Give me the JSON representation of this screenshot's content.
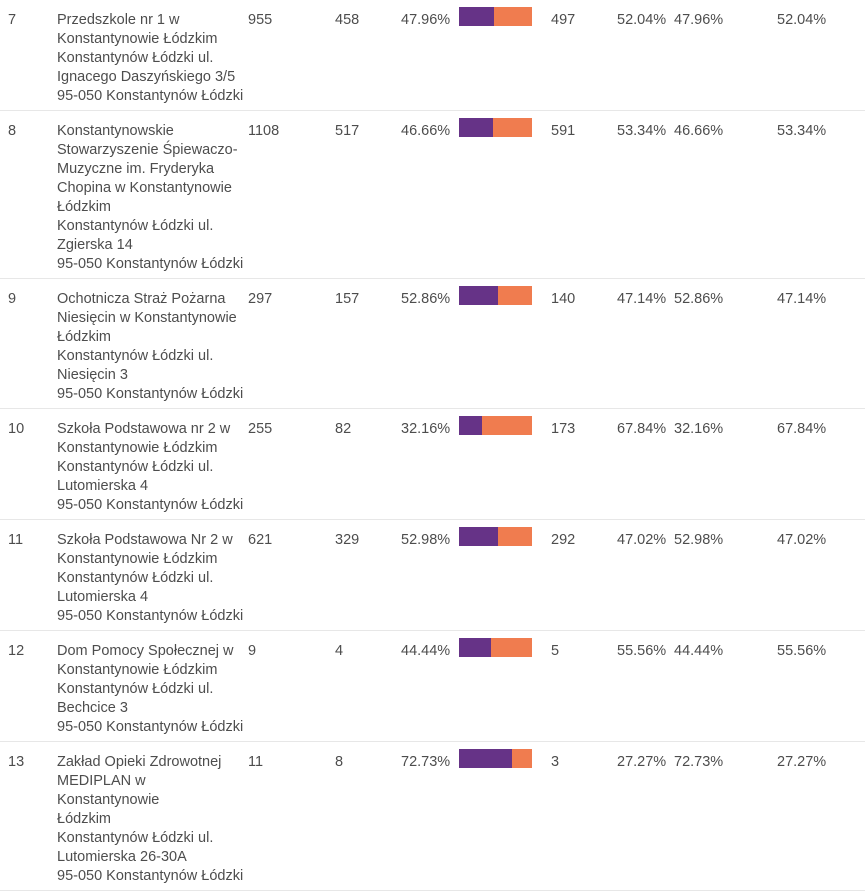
{
  "colors": {
    "candidate_a_bar": "#663387",
    "candidate_b_bar": "#f07c4f",
    "row_border": "#e7e7e7",
    "text": "#4d4d4d"
  },
  "table": {
    "rows": [
      {
        "num": "7",
        "name": "Przedszkole nr 1 w\nKonstantynowie Łódzkim",
        "address": "Konstantynów Łódzki ul.\nIgnacego Daszyńskiego 3/5",
        "zip": "95-050 Konstantynów Łódzki",
        "total": "955",
        "votes_a": "458",
        "pct_a": "47.96%",
        "votes_b": "497",
        "pct_b": "52.04%",
        "pct_a_repeat": "47.96%",
        "pct_b_repeat": "52.04%"
      },
      {
        "num": "8",
        "name": "Konstantynowskie\nStowarzyszenie Śpiewaczo-\nMuzyczne im. Fryderyka\nChopina w Konstantynowie\nŁódzkim",
        "address": "Konstantynów Łódzki ul.\nZgierska 14",
        "zip": "95-050 Konstantynów Łódzki",
        "total": "1108",
        "votes_a": "517",
        "pct_a": "46.66%",
        "votes_b": "591",
        "pct_b": "53.34%",
        "pct_a_repeat": "46.66%",
        "pct_b_repeat": "53.34%"
      },
      {
        "num": "9",
        "name": "Ochotnicza Straż Pożarna\nNiesięcin w Konstantynowie\nŁódzkim",
        "address": "Konstantynów Łódzki ul.\nNiesięcin 3",
        "zip": "95-050 Konstantynów Łódzki",
        "total": "297",
        "votes_a": "157",
        "pct_a": "52.86%",
        "votes_b": "140",
        "pct_b": "47.14%",
        "pct_a_repeat": "52.86%",
        "pct_b_repeat": "47.14%"
      },
      {
        "num": "10",
        "name": "Szkoła Podstawowa nr 2 w\nKonstantynowie Łódzkim",
        "address": "Konstantynów Łódzki ul.\nLutomierska 4",
        "zip": "95-050 Konstantynów Łódzki",
        "total": "255",
        "votes_a": "82",
        "pct_a": "32.16%",
        "votes_b": "173",
        "pct_b": "67.84%",
        "pct_a_repeat": "32.16%",
        "pct_b_repeat": "67.84%"
      },
      {
        "num": "11",
        "name": "Szkoła Podstawowa Nr 2 w\nKonstantynowie Łódzkim",
        "address": "Konstantynów Łódzki ul.\nLutomierska 4",
        "zip": "95-050 Konstantynów Łódzki",
        "total": "621",
        "votes_a": "329",
        "pct_a": "52.98%",
        "votes_b": "292",
        "pct_b": "47.02%",
        "pct_a_repeat": "52.98%",
        "pct_b_repeat": "47.02%"
      },
      {
        "num": "12",
        "name": "Dom Pomocy Społecznej w\nKonstantynowie Łódzkim",
        "address": "Konstantynów Łódzki ul.\nBechcice 3",
        "zip": "95-050 Konstantynów Łódzki",
        "total": "9",
        "votes_a": "4",
        "pct_a": "44.44%",
        "votes_b": "5",
        "pct_b": "55.56%",
        "pct_a_repeat": "44.44%",
        "pct_b_repeat": "55.56%"
      },
      {
        "num": "13",
        "name": "Zakład Opieki Zdrowotnej\nMEDIPLAN w Konstantynowie\nŁódzkim",
        "address": "Konstantynów Łódzki ul.\nLutomierska 26-30A",
        "zip": "95-050 Konstantynów Łódzki",
        "total": "11",
        "votes_a": "8",
        "pct_a": "72.73%",
        "votes_b": "3",
        "pct_b": "27.27%",
        "pct_a_repeat": "72.73%",
        "pct_b_repeat": "27.27%"
      }
    ]
  }
}
